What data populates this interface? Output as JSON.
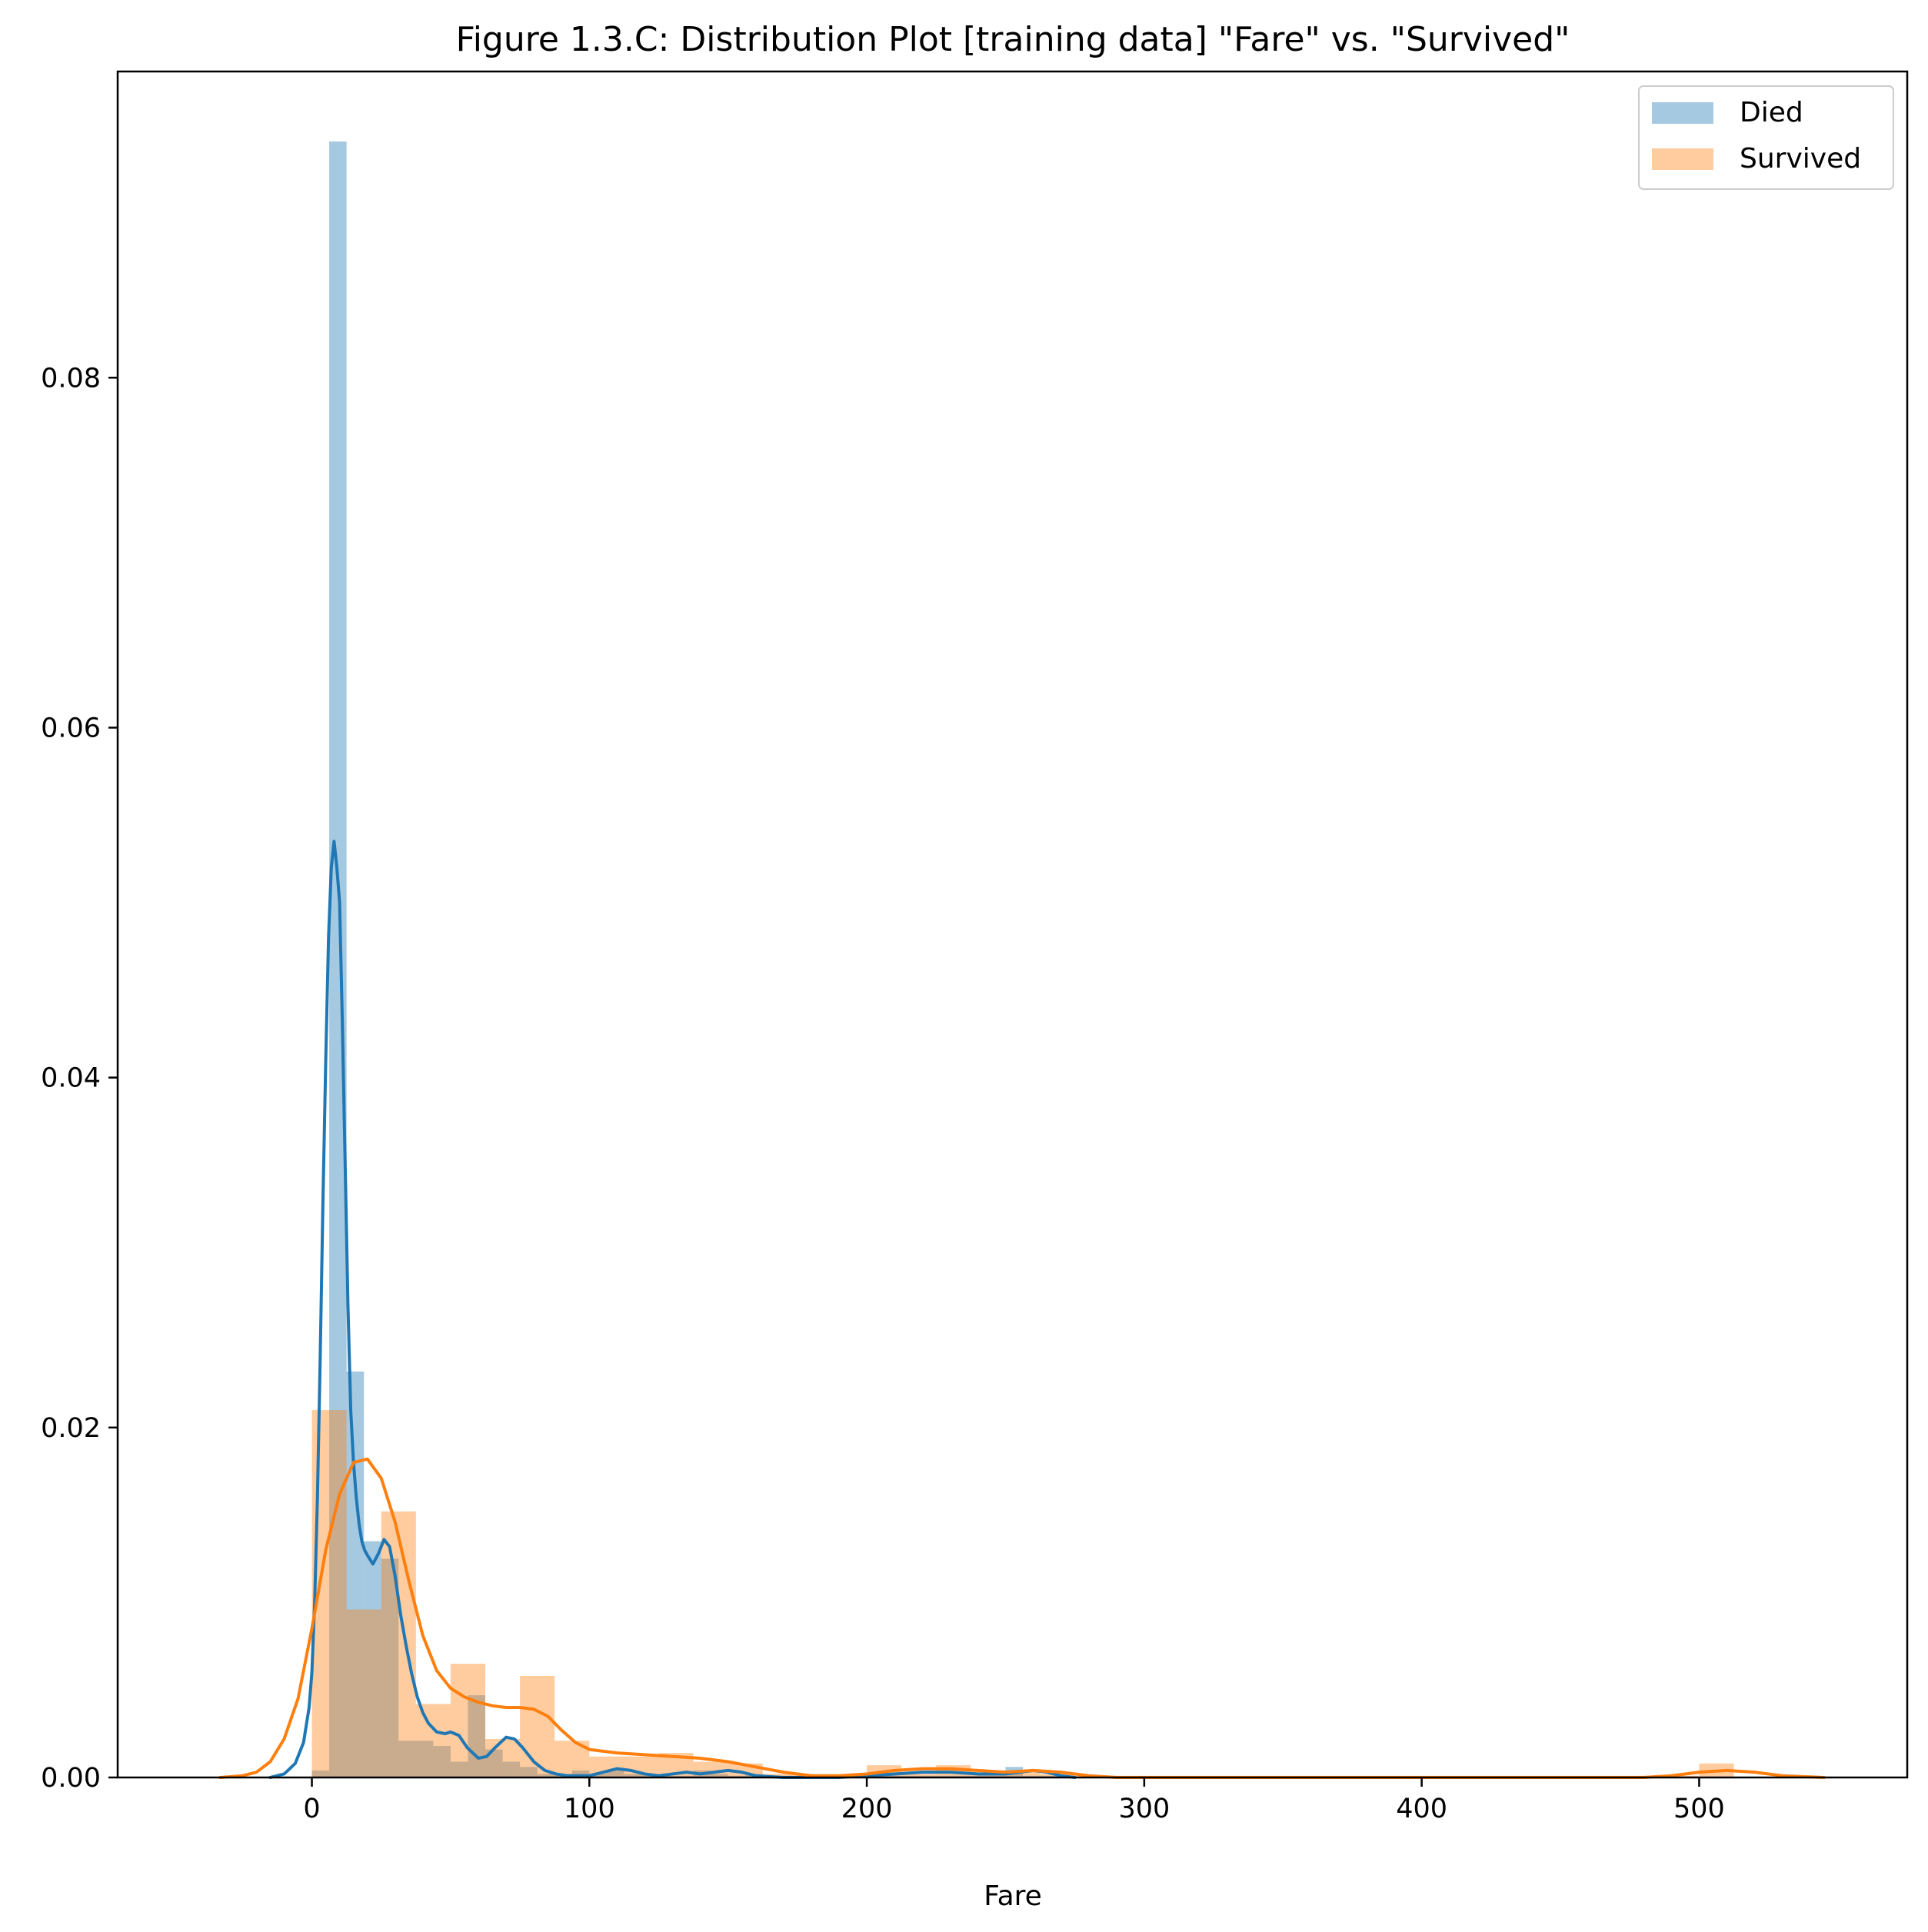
{
  "chart_data": {
    "type": "bar",
    "title": "Figure 1.3.C:  Distribution Plot [training data] \"Fare\" vs. \"Survived\"",
    "xlabel": "Fare",
    "ylabel": "",
    "xlim": [
      -70,
      575
    ],
    "ylim": [
      0,
      0.0975
    ],
    "xticks": [
      0,
      100,
      200,
      300,
      400,
      500
    ],
    "xtick_labels": [
      "0",
      "100",
      "200",
      "300",
      "400",
      "500"
    ],
    "yticks": [
      0.0,
      0.02,
      0.04,
      0.06,
      0.08
    ],
    "ytick_labels": [
      "0.00",
      "0.02",
      "0.04",
      "0.06",
      "0.08"
    ],
    "grid": false,
    "legend_position": "top-right",
    "series": [
      {
        "name": "Died",
        "kind": "histogram",
        "color": "#1f77b4",
        "alpha": 0.4,
        "bin_width": 6.25,
        "bin_start": 0,
        "values": [
          0.0004,
          0.0935,
          0.0232,
          0.0135,
          0.0125,
          0.0021,
          0.0021,
          0.0018,
          0.0009,
          0.0047,
          0.0016,
          0.0009,
          0.0006,
          0.0002,
          0.0002,
          0.0004,
          0.0002,
          0.0004,
          0.0002,
          0.0002,
          0.0001,
          0.0001,
          0.0004,
          0.0002,
          0.0001,
          0.0002,
          0.0001,
          0.0001,
          0.0002,
          0.0001,
          0.0001,
          0.0001,
          0.0001,
          0.0001,
          0.0001,
          0.0001,
          0.0001,
          0.0001,
          0.0001,
          0.0001,
          0.0006,
          0.0001,
          0.0001,
          0.0001
        ]
      },
      {
        "name": "Survived",
        "kind": "histogram",
        "color": "#ff7f0e",
        "alpha": 0.4,
        "bin_width": 12.5,
        "bin_start": 0,
        "values": [
          0.021,
          0.0096,
          0.0152,
          0.0042,
          0.0065,
          0.0022,
          0.0058,
          0.0021,
          0.0012,
          0.0012,
          0.0014,
          0.0009,
          0.0008,
          0.0002,
          0.0001,
          0.0001,
          0.0007,
          0.0002,
          0.0007,
          0.0004,
          0.0004,
          0.0002,
          0.0001,
          0.0001,
          0.0001,
          0.0001,
          0.0001,
          0.0001,
          0.0001,
          0.0001,
          0.0001,
          0.0001,
          0.0001,
          0.0001,
          0.0001,
          0.0001,
          0.0001,
          0.0001,
          0.0001,
          0.0001,
          0.0008
        ]
      },
      {
        "name": "Died",
        "kind": "kde",
        "color": "#1f77b4",
        "x": [
          -15,
          -10,
          -6,
          -3,
          -1,
          0,
          1,
          2,
          3,
          4,
          5,
          6,
          7,
          8,
          9,
          10,
          11,
          12,
          13,
          14,
          15,
          16,
          17,
          18,
          19,
          20,
          22,
          24,
          26,
          28,
          30,
          32,
          34,
          36,
          38,
          40,
          42,
          45,
          48,
          50,
          53,
          56,
          60,
          63,
          66,
          70,
          73,
          76,
          80,
          84,
          88,
          92,
          96,
          100,
          105,
          110,
          115,
          120,
          125,
          130,
          135,
          140,
          145,
          150,
          155,
          160,
          170,
          180,
          190,
          200,
          210,
          220,
          230,
          240,
          250,
          255,
          260,
          265,
          270,
          275
        ],
        "y": [
          0.0,
          0.0002,
          0.0008,
          0.002,
          0.004,
          0.006,
          0.01,
          0.016,
          0.024,
          0.033,
          0.041,
          0.048,
          0.052,
          0.0535,
          0.052,
          0.05,
          0.043,
          0.035,
          0.027,
          0.021,
          0.018,
          0.016,
          0.0145,
          0.0135,
          0.013,
          0.0127,
          0.0122,
          0.0128,
          0.0136,
          0.0132,
          0.0115,
          0.0093,
          0.0075,
          0.0059,
          0.0046,
          0.0037,
          0.0031,
          0.0026,
          0.0025,
          0.0026,
          0.0024,
          0.0017,
          0.0011,
          0.0012,
          0.0017,
          0.0023,
          0.0022,
          0.0017,
          0.0009,
          0.0004,
          0.0002,
          0.0001,
          0.0001,
          0.0001,
          0.0003,
          0.0005,
          0.0004,
          0.0002,
          0.0001,
          0.0002,
          0.0003,
          0.0002,
          0.0003,
          0.0004,
          0.0003,
          0.0001,
          0.0,
          0.0,
          0.0,
          0.0001,
          0.0002,
          0.0003,
          0.0003,
          0.0002,
          0.0002,
          0.0003,
          0.0004,
          0.0003,
          0.0001,
          0.0
        ]
      },
      {
        "name": "Survived",
        "kind": "kde",
        "color": "#ff7f0e",
        "x": [
          -33,
          -25,
          -20,
          -15,
          -10,
          -5,
          0,
          5,
          10,
          15,
          20,
          25,
          30,
          35,
          40,
          45,
          50,
          55,
          60,
          65,
          70,
          75,
          80,
          85,
          90,
          95,
          100,
          110,
          120,
          130,
          140,
          150,
          160,
          170,
          180,
          190,
          200,
          210,
          220,
          230,
          240,
          250,
          260,
          270,
          280,
          290,
          300,
          350,
          400,
          450,
          480,
          490,
          500,
          510,
          520,
          530,
          545
        ],
        "y": [
          0.0,
          0.0001,
          0.0003,
          0.0009,
          0.0022,
          0.0045,
          0.0085,
          0.013,
          0.0162,
          0.018,
          0.0182,
          0.0171,
          0.0146,
          0.0112,
          0.0081,
          0.0061,
          0.0051,
          0.0046,
          0.0043,
          0.0041,
          0.004,
          0.004,
          0.0039,
          0.0035,
          0.0027,
          0.002,
          0.0016,
          0.0014,
          0.0013,
          0.0012,
          0.0011,
          0.0009,
          0.0006,
          0.0003,
          0.0001,
          0.0001,
          0.0002,
          0.0004,
          0.0005,
          0.0005,
          0.0004,
          0.0003,
          0.0004,
          0.0003,
          0.0001,
          0.0,
          0.0,
          0.0,
          0.0,
          0.0,
          0.0,
          0.0001,
          0.0003,
          0.0004,
          0.0003,
          0.0001,
          0.0
        ]
      }
    ],
    "legend": [
      {
        "label": "Died",
        "color": "#1f77b4"
      },
      {
        "label": "Survived",
        "color": "#ff7f0e"
      }
    ]
  }
}
